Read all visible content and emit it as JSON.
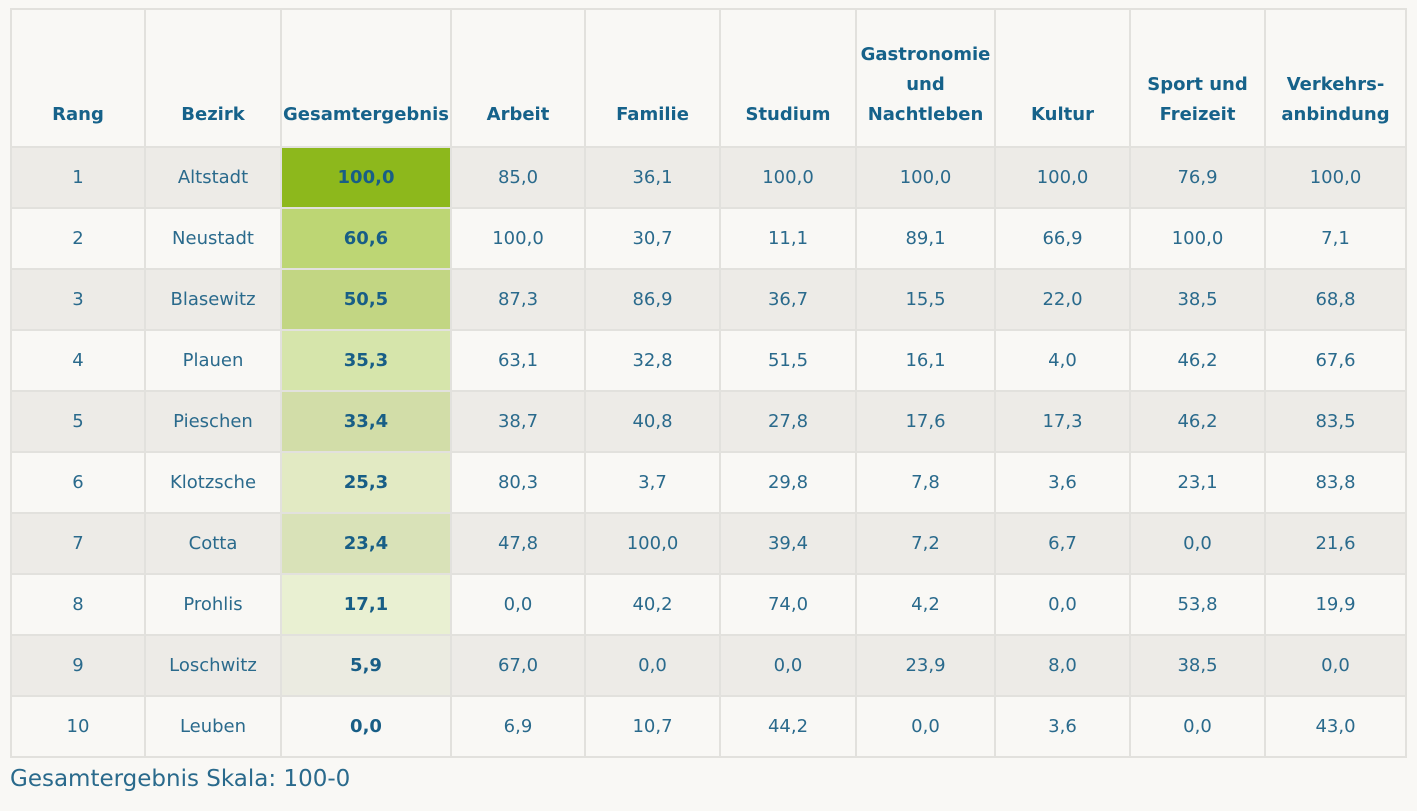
{
  "table": {
    "headers": [
      {
        "key": "rang",
        "lines": [
          "Rang"
        ]
      },
      {
        "key": "bezirk",
        "lines": [
          "Bezirk"
        ]
      },
      {
        "key": "gesamtergebnis",
        "lines": [
          "Gesamtergebnis"
        ]
      },
      {
        "key": "arbeit",
        "lines": [
          "Arbeit"
        ]
      },
      {
        "key": "familie",
        "lines": [
          "Familie"
        ]
      },
      {
        "key": "studium",
        "lines": [
          "Studium"
        ]
      },
      {
        "key": "gastronomie",
        "lines": [
          "Gastronomie",
          "und",
          "Nachtleben"
        ]
      },
      {
        "key": "kultur",
        "lines": [
          "Kultur"
        ]
      },
      {
        "key": "sport",
        "lines": [
          "Sport und",
          "Freizeit"
        ]
      },
      {
        "key": "verkehr",
        "lines": [
          "Verkehrs-",
          "anbindung"
        ]
      }
    ],
    "rows": [
      {
        "rang": "1",
        "bezirk": "Altstadt",
        "gesamt": "100,0",
        "score": 100.0,
        "cells": [
          "85,0",
          "36,1",
          "100,0",
          "100,0",
          "100,0",
          "76,9",
          "100,0"
        ]
      },
      {
        "rang": "2",
        "bezirk": "Neustadt",
        "gesamt": "60,6",
        "score": 60.6,
        "cells": [
          "100,0",
          "30,7",
          "11,1",
          "89,1",
          "66,9",
          "100,0",
          "7,1"
        ]
      },
      {
        "rang": "3",
        "bezirk": "Blasewitz",
        "gesamt": "50,5",
        "score": 50.5,
        "cells": [
          "87,3",
          "86,9",
          "36,7",
          "15,5",
          "22,0",
          "38,5",
          "68,8"
        ]
      },
      {
        "rang": "4",
        "bezirk": "Plauen",
        "gesamt": "35,3",
        "score": 35.3,
        "cells": [
          "63,1",
          "32,8",
          "51,5",
          "16,1",
          "4,0",
          "46,2",
          "67,6"
        ]
      },
      {
        "rang": "5",
        "bezirk": "Pieschen",
        "gesamt": "33,4",
        "score": 33.4,
        "cells": [
          "38,7",
          "40,8",
          "27,8",
          "17,6",
          "17,3",
          "46,2",
          "83,5"
        ]
      },
      {
        "rang": "6",
        "bezirk": "Klotzsche",
        "gesamt": "25,3",
        "score": 25.3,
        "cells": [
          "80,3",
          "3,7",
          "29,8",
          "7,8",
          "3,6",
          "23,1",
          "83,8"
        ]
      },
      {
        "rang": "7",
        "bezirk": "Cotta",
        "gesamt": "23,4",
        "score": 23.4,
        "cells": [
          "47,8",
          "100,0",
          "39,4",
          "7,2",
          "6,7",
          "0,0",
          "21,6"
        ]
      },
      {
        "rang": "8",
        "bezirk": "Prohlis",
        "gesamt": "17,1",
        "score": 17.1,
        "cells": [
          "0,0",
          "40,2",
          "74,0",
          "4,2",
          "0,0",
          "53,8",
          "19,9"
        ]
      },
      {
        "rang": "9",
        "bezirk": "Loschwitz",
        "gesamt": "5,9",
        "score": 5.9,
        "cells": [
          "67,0",
          "0,0",
          "0,0",
          "23,9",
          "8,0",
          "38,5",
          "0,0"
        ]
      },
      {
        "rang": "10",
        "bezirk": "Leuben",
        "gesamt": "0,0",
        "score": 0.0,
        "cells": [
          "6,9",
          "10,7",
          "44,2",
          "0,0",
          "3,6",
          "0,0",
          "43,0"
        ]
      }
    ],
    "heat_colors": [
      "#8db81c",
      "#bdd674",
      "#c2d683",
      "#d6e5ab",
      "#d2dda8",
      "#e2eac3",
      "#d9e2b8",
      "#e9f0d2",
      "#ebebe1",
      "#f9f8f5"
    ]
  },
  "footer": {
    "scale_text": "Gesamtergebnis Skala: 100-0"
  }
}
